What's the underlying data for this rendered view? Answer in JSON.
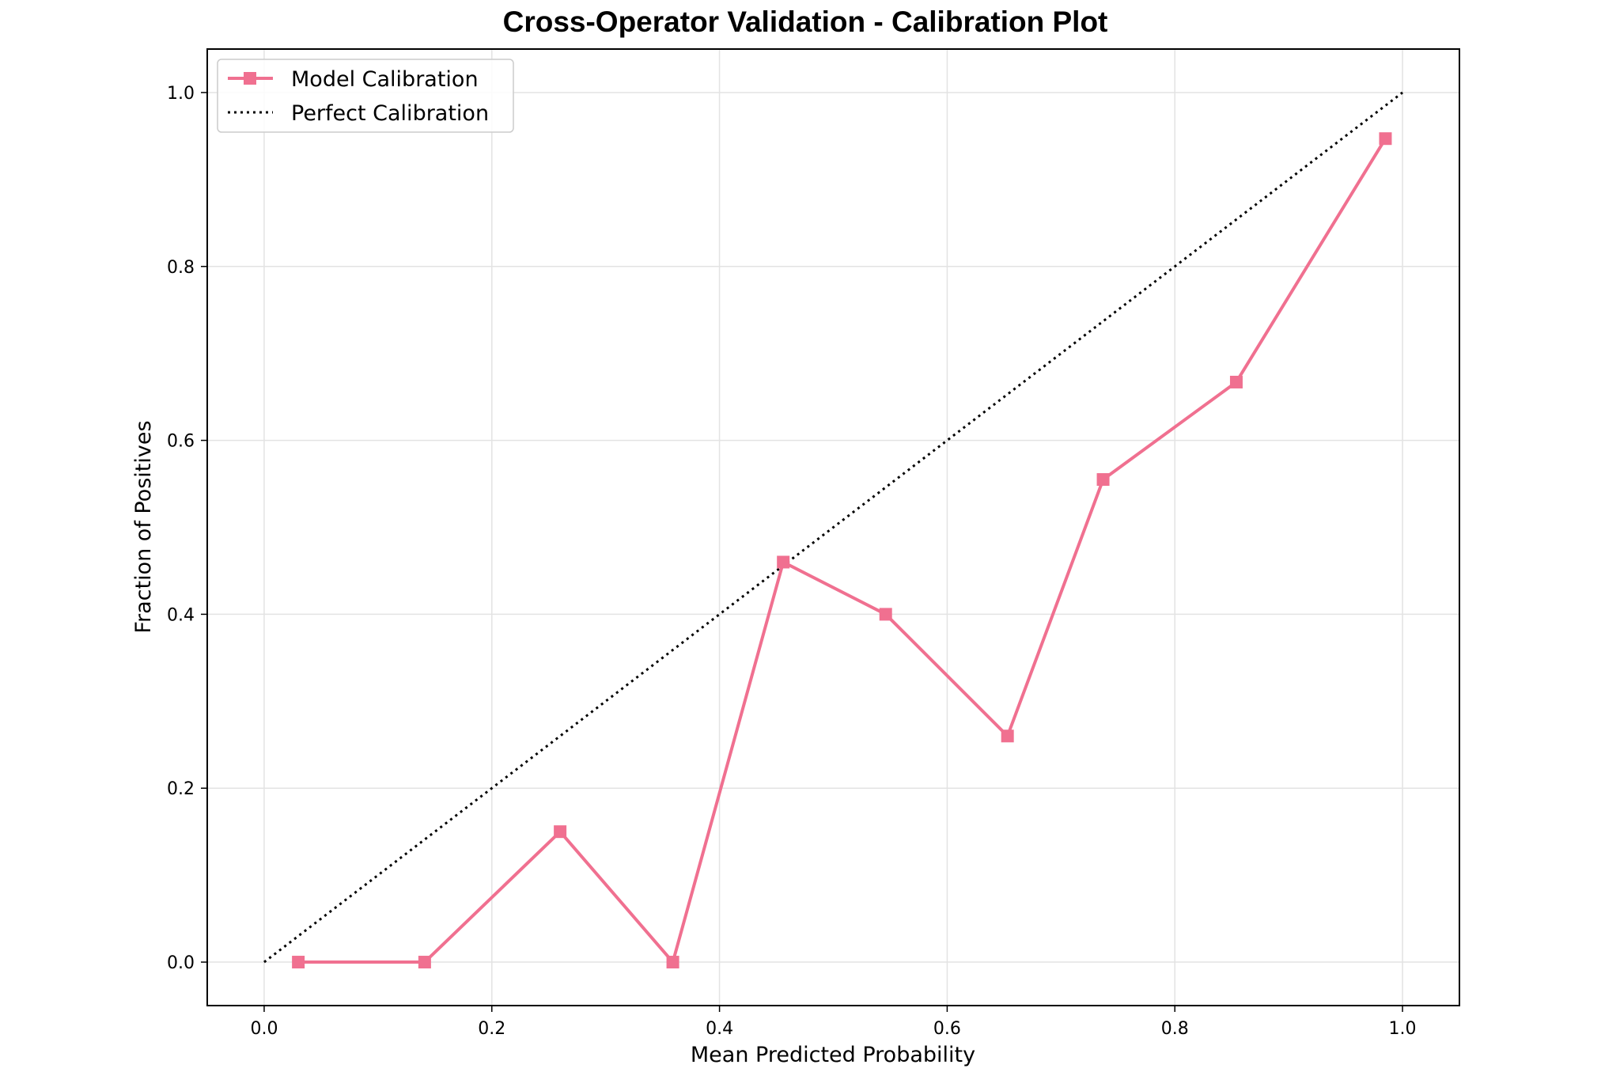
{
  "chart_data": {
    "type": "line",
    "title": "Cross-Operator Validation - Calibration Plot",
    "xlabel": "Mean Predicted Probability",
    "ylabel": "Fraction of Positives",
    "xlim": [
      -0.05,
      1.05
    ],
    "ylim": [
      -0.05,
      1.05
    ],
    "x_ticks": [
      0.0,
      0.2,
      0.4,
      0.6,
      0.8,
      1.0
    ],
    "y_ticks": [
      0.0,
      0.2,
      0.4,
      0.6,
      0.8,
      1.0
    ],
    "x_tick_labels": [
      "0.0",
      "0.2",
      "0.4",
      "0.6",
      "0.8",
      "1.0"
    ],
    "y_tick_labels": [
      "0.0",
      "0.2",
      "0.4",
      "0.6",
      "0.8",
      "1.0"
    ],
    "grid": true,
    "legend_position": "top-left",
    "series": [
      {
        "name": "Model Calibration",
        "color": "#f07090",
        "marker": "square",
        "line_style": "solid",
        "x": [
          0.03,
          0.141,
          0.26,
          0.359,
          0.456,
          0.546,
          0.653,
          0.737,
          0.854,
          0.985
        ],
        "y": [
          0.0,
          0.0,
          0.15,
          0.0,
          0.46,
          0.4,
          0.26,
          0.555,
          0.667,
          0.947
        ]
      },
      {
        "name": "Perfect Calibration",
        "color": "#000000",
        "marker": "none",
        "line_style": "dotted",
        "x": [
          0.0,
          1.0
        ],
        "y": [
          0.0,
          1.0
        ]
      }
    ]
  }
}
